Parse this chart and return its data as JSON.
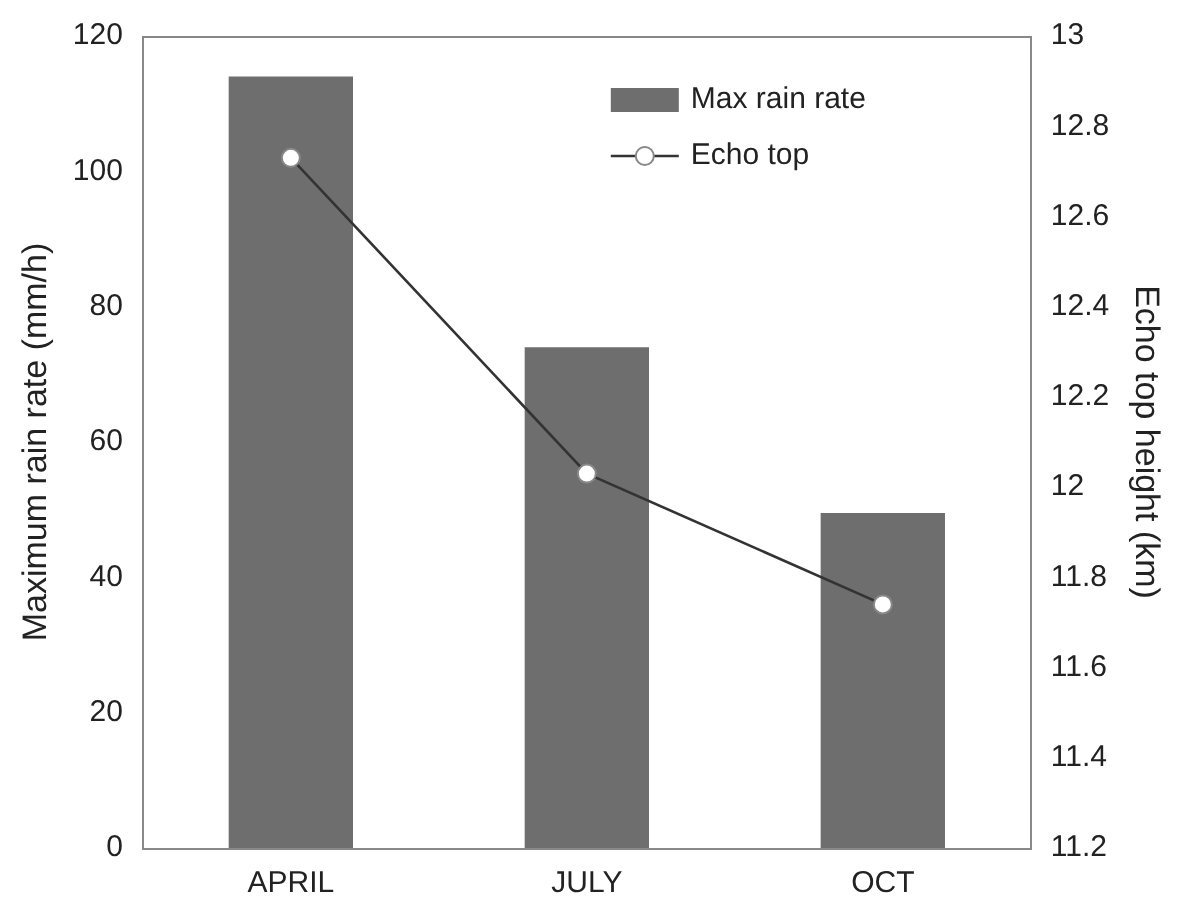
{
  "chart_data": {
    "type": "bar",
    "categories": [
      "APRIL",
      "JULY",
      "OCT"
    ],
    "ylabel": "Maximum rain rate (mm/h)",
    "y2label": "Echo top height (km)",
    "series": [
      {
        "name": "Max rain rate",
        "color": "#6e6e6e",
        "values": [
          114,
          74,
          49.5
        ]
      },
      {
        "name": "Echo top",
        "type": "line",
        "axis": "y2",
        "color": "#333333",
        "marker": "circle",
        "values": [
          12.73,
          12.03,
          11.74
        ]
      }
    ],
    "ylim": [
      0,
      120
    ],
    "yticks": [
      0,
      20,
      40,
      60,
      80,
      100,
      120
    ],
    "y2lim": [
      11.2,
      13
    ],
    "y2ticks": [
      11.2,
      11.4,
      11.6,
      11.8,
      12,
      12.2,
      12.4,
      12.6,
      12.8,
      13
    ],
    "grid": false,
    "legend": "top right"
  }
}
